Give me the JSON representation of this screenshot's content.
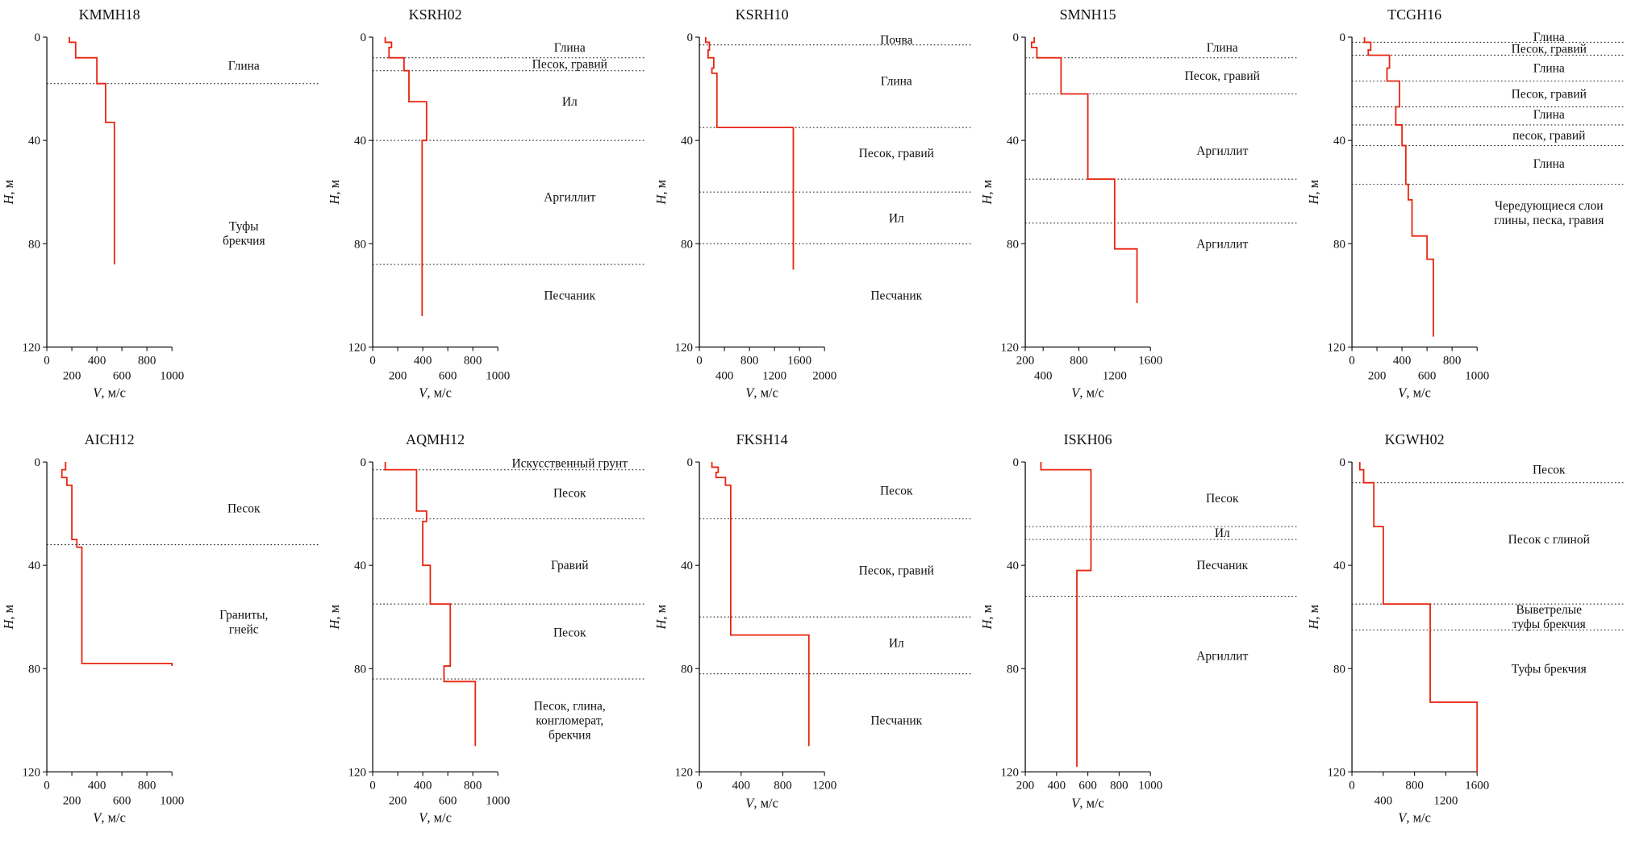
{
  "figure": {
    "description": "Seismic velocity (V) vs depth (H) profiles with geological layer annotations for ten boreholes",
    "colors": {
      "profile_line": "#e8250f",
      "boundary_line": "#222222",
      "text": "#111111",
      "axis": "#111111",
      "background": "#ffffff"
    }
  },
  "chart_data": [
    {
      "type": "line",
      "title": "KMMH18",
      "xlabel": "V, м/с",
      "ylabel": "H, м",
      "xlim": [
        0,
        1000
      ],
      "ylim": [
        0,
        120
      ],
      "xticks_row1": [
        0,
        400,
        800
      ],
      "xticks_row2": [
        200,
        600,
        1000
      ],
      "yticks": [
        0,
        40,
        80,
        120
      ],
      "boundaries_depth_m": [
        18
      ],
      "layers": [
        {
          "label": "Глина",
          "depth_m": 11
        },
        {
          "label": "Туфы\nбрекчия",
          "depth_m": 76
        }
      ],
      "profile_v_depth": [
        [
          180,
          0
        ],
        [
          180,
          2
        ],
        [
          230,
          2
        ],
        [
          230,
          8
        ],
        [
          400,
          8
        ],
        [
          400,
          18
        ],
        [
          470,
          18
        ],
        [
          470,
          33
        ],
        [
          540,
          33
        ],
        [
          540,
          88
        ]
      ]
    },
    {
      "type": "line",
      "title": "KSRH02",
      "xlabel": "V, м/с",
      "ylabel": "H, м",
      "xlim": [
        0,
        1000
      ],
      "ylim": [
        0,
        120
      ],
      "xticks_row1": [
        0,
        400,
        800
      ],
      "xticks_row2": [
        200,
        600,
        1000
      ],
      "yticks": [
        0,
        40,
        80,
        120
      ],
      "boundaries_depth_m": [
        8,
        13,
        40,
        88
      ],
      "layers": [
        {
          "label": "Глина",
          "depth_m": 4
        },
        {
          "label": "Песок, гравий",
          "depth_m": 10.5
        },
        {
          "label": "Ил",
          "depth_m": 25
        },
        {
          "label": "Аргиллит",
          "depth_m": 62
        },
        {
          "label": "Песчаник",
          "depth_m": 100
        }
      ],
      "profile_v_depth": [
        [
          100,
          0
        ],
        [
          100,
          2
        ],
        [
          150,
          2
        ],
        [
          150,
          4
        ],
        [
          130,
          4
        ],
        [
          130,
          8
        ],
        [
          250,
          8
        ],
        [
          250,
          13
        ],
        [
          290,
          13
        ],
        [
          290,
          25
        ],
        [
          430,
          25
        ],
        [
          430,
          40
        ],
        [
          395,
          40
        ],
        [
          395,
          108
        ]
      ]
    },
    {
      "type": "line",
      "title": "KSRH10",
      "xlabel": "V, м/с",
      "ylabel": "H, м",
      "xlim": [
        0,
        2000
      ],
      "ylim": [
        0,
        120
      ],
      "xticks_row1": [
        0,
        800,
        1600
      ],
      "xticks_row2": [
        400,
        1200,
        2000
      ],
      "yticks": [
        0,
        40,
        80,
        120
      ],
      "boundaries_depth_m": [
        3,
        35,
        60,
        80
      ],
      "layers": [
        {
          "label": "Почва",
          "depth_m": 1
        },
        {
          "label": "Глина",
          "depth_m": 17
        },
        {
          "label": "Песок, гравий",
          "depth_m": 45
        },
        {
          "label": "Ил",
          "depth_m": 70
        },
        {
          "label": "Песчаник",
          "depth_m": 100
        }
      ],
      "profile_v_depth": [
        [
          100,
          0
        ],
        [
          100,
          2
        ],
        [
          160,
          2
        ],
        [
          160,
          5
        ],
        [
          140,
          5
        ],
        [
          140,
          8
        ],
        [
          230,
          8
        ],
        [
          230,
          12
        ],
        [
          200,
          12
        ],
        [
          200,
          14
        ],
        [
          280,
          14
        ],
        [
          280,
          35
        ],
        [
          1500,
          35
        ],
        [
          1500,
          90
        ]
      ]
    },
    {
      "type": "line",
      "title": "SMNH15",
      "xlabel": "V, м/с",
      "ylabel": "H, м",
      "xlim": [
        200,
        1600
      ],
      "ylim": [
        0,
        120
      ],
      "xticks_row1": [
        200,
        800,
        1600
      ],
      "xticks_row2": [
        400,
        1200
      ],
      "yticks": [
        0,
        40,
        80,
        120
      ],
      "boundaries_depth_m": [
        8,
        22,
        55,
        72
      ],
      "layers": [
        {
          "label": "Глина",
          "depth_m": 4
        },
        {
          "label": "Песок, гравий",
          "depth_m": 15
        },
        {
          "label": "Аргиллит",
          "depth_m": 44
        },
        {
          "label": "Аргиллит",
          "depth_m": 80
        }
      ],
      "profile_v_depth": [
        [
          300,
          0
        ],
        [
          300,
          2
        ],
        [
          270,
          2
        ],
        [
          270,
          4
        ],
        [
          330,
          4
        ],
        [
          330,
          8
        ],
        [
          600,
          8
        ],
        [
          600,
          22
        ],
        [
          900,
          22
        ],
        [
          900,
          55
        ],
        [
          1200,
          55
        ],
        [
          1200,
          82
        ],
        [
          1450,
          82
        ],
        [
          1450,
          103
        ]
      ]
    },
    {
      "type": "line",
      "title": "TCGH16",
      "xlabel": "V, м/с",
      "ylabel": "H, м",
      "xlim": [
        0,
        1000
      ],
      "ylim": [
        0,
        120
      ],
      "xticks_row1": [
        0,
        400,
        800
      ],
      "xticks_row2": [
        200,
        600,
        1000
      ],
      "yticks": [
        0,
        40,
        80,
        120
      ],
      "boundaries_depth_m": [
        2,
        7,
        17,
        27,
        34,
        42,
        57
      ],
      "layers": [
        {
          "label": "Глина",
          "depth_m": 0
        },
        {
          "label": "Песок, гравий",
          "depth_m": 4.5
        },
        {
          "label": "Глина",
          "depth_m": 12
        },
        {
          "label": "Песок, гравий",
          "depth_m": 22
        },
        {
          "label": "Глина",
          "depth_m": 30
        },
        {
          "label": "песок, гравий",
          "depth_m": 38
        },
        {
          "label": "Глина",
          "depth_m": 49
        },
        {
          "label": "Чередующиеся слои\nглины, песка, гравия",
          "depth_m": 68
        }
      ],
      "profile_v_depth": [
        [
          100,
          0
        ],
        [
          100,
          2
        ],
        [
          150,
          2
        ],
        [
          150,
          5
        ],
        [
          130,
          5
        ],
        [
          130,
          7
        ],
        [
          300,
          7
        ],
        [
          300,
          12
        ],
        [
          280,
          12
        ],
        [
          280,
          17
        ],
        [
          380,
          17
        ],
        [
          380,
          27
        ],
        [
          350,
          27
        ],
        [
          350,
          34
        ],
        [
          400,
          34
        ],
        [
          400,
          42
        ],
        [
          430,
          42
        ],
        [
          430,
          57
        ],
        [
          450,
          57
        ],
        [
          450,
          63
        ],
        [
          480,
          63
        ],
        [
          480,
          77
        ],
        [
          600,
          77
        ],
        [
          600,
          86
        ],
        [
          650,
          86
        ],
        [
          650,
          116
        ]
      ]
    },
    {
      "type": "line",
      "title": "AICH12",
      "xlabel": "V, м/с",
      "ylabel": "H, м",
      "xlim": [
        0,
        1000
      ],
      "ylim": [
        0,
        120
      ],
      "xticks_row1": [
        0,
        400,
        800
      ],
      "xticks_row2": [
        200,
        600,
        1000
      ],
      "yticks": [
        0,
        40,
        80,
        120
      ],
      "boundaries_depth_m": [
        32
      ],
      "layers": [
        {
          "label": "Песок",
          "depth_m": 18
        },
        {
          "label": "Граниты,\nгнейс",
          "depth_m": 62
        }
      ],
      "profile_v_depth": [
        [
          150,
          0
        ],
        [
          150,
          3
        ],
        [
          120,
          3
        ],
        [
          120,
          6
        ],
        [
          160,
          6
        ],
        [
          160,
          9
        ],
        [
          200,
          9
        ],
        [
          200,
          30
        ],
        [
          240,
          30
        ],
        [
          240,
          33
        ],
        [
          280,
          33
        ],
        [
          280,
          78
        ],
        [
          1000,
          78
        ],
        [
          1000,
          79
        ]
      ]
    },
    {
      "type": "line",
      "title": "AQMH12",
      "xlabel": "V, м/с",
      "ylabel": "H, м",
      "xlim": [
        0,
        1000
      ],
      "ylim": [
        0,
        120
      ],
      "xticks_row1": [
        0,
        400,
        800
      ],
      "xticks_row2": [
        200,
        600,
        1000
      ],
      "yticks": [
        0,
        40,
        80,
        120
      ],
      "boundaries_depth_m": [
        3,
        22,
        55,
        84
      ],
      "layers": [
        {
          "label": "Искусственный грунт",
          "depth_m": 0.5
        },
        {
          "label": "Песок",
          "depth_m": 12
        },
        {
          "label": "Гравий",
          "depth_m": 40
        },
        {
          "label": "Песок",
          "depth_m": 66
        },
        {
          "label": "Песок, глина,\nконгломерат,\nбрекчия",
          "depth_m": 100
        }
      ],
      "profile_v_depth": [
        [
          100,
          0
        ],
        [
          100,
          3
        ],
        [
          350,
          3
        ],
        [
          350,
          19
        ],
        [
          430,
          19
        ],
        [
          430,
          23
        ],
        [
          400,
          23
        ],
        [
          400,
          40
        ],
        [
          460,
          40
        ],
        [
          460,
          55
        ],
        [
          620,
          55
        ],
        [
          620,
          79
        ],
        [
          570,
          79
        ],
        [
          570,
          85
        ],
        [
          820,
          85
        ],
        [
          820,
          110
        ]
      ]
    },
    {
      "type": "line",
      "title": "FKSH14",
      "xlabel": "V, м/с",
      "ylabel": "H, м",
      "xlim": [
        0,
        1200
      ],
      "ylim": [
        0,
        120
      ],
      "xticks_row1": [
        0,
        400,
        800,
        1200
      ],
      "xticks_row2": [],
      "yticks": [
        0,
        40,
        80,
        120
      ],
      "boundaries_depth_m": [
        22,
        60,
        82
      ],
      "layers": [
        {
          "label": "Песок",
          "depth_m": 11
        },
        {
          "label": "Песок, гравий",
          "depth_m": 42
        },
        {
          "label": "Ил",
          "depth_m": 70
        },
        {
          "label": "Песчаник",
          "depth_m": 100
        }
      ],
      "profile_v_depth": [
        [
          120,
          0
        ],
        [
          120,
          2
        ],
        [
          180,
          2
        ],
        [
          180,
          4
        ],
        [
          160,
          4
        ],
        [
          160,
          6
        ],
        [
          250,
          6
        ],
        [
          250,
          9
        ],
        [
          300,
          9
        ],
        [
          300,
          67
        ],
        [
          1050,
          67
        ],
        [
          1050,
          110
        ]
      ]
    },
    {
      "type": "line",
      "title": "ISKH06",
      "xlabel": "V, м/с",
      "ylabel": "H, м",
      "xlim": [
        200,
        1000
      ],
      "ylim": [
        0,
        120
      ],
      "xticks_row1": [
        200,
        400,
        600,
        800,
        1000
      ],
      "xticks_row2": [],
      "yticks": [
        0,
        40,
        80,
        120
      ],
      "boundaries_depth_m": [
        25,
        30,
        52
      ],
      "layers": [
        {
          "label": "Песок",
          "depth_m": 14
        },
        {
          "label": "Ил",
          "depth_m": 27.5
        },
        {
          "label": "Песчаник",
          "depth_m": 40
        },
        {
          "label": "Аргиллит",
          "depth_m": 75
        }
      ],
      "profile_v_depth": [
        [
          300,
          0
        ],
        [
          300,
          3
        ],
        [
          620,
          3
        ],
        [
          620,
          42
        ],
        [
          530,
          42
        ],
        [
          530,
          118
        ]
      ]
    },
    {
      "type": "line",
      "title": "KGWH02",
      "xlabel": "V, м/с",
      "ylabel": "H, м",
      "xlim": [
        0,
        1600
      ],
      "ylim": [
        0,
        120
      ],
      "xticks_row1": [
        0,
        800,
        1600
      ],
      "xticks_row2": [
        400,
        1200
      ],
      "yticks": [
        0,
        40,
        80,
        120
      ],
      "boundaries_depth_m": [
        8,
        55,
        65
      ],
      "layers": [
        {
          "label": "Песок",
          "depth_m": 3
        },
        {
          "label": "Песок с глиной",
          "depth_m": 30
        },
        {
          "label": "Выветрелые\nтуфы брекчия",
          "depth_m": 60
        },
        {
          "label": "Туфы брекчия",
          "depth_m": 80
        }
      ],
      "profile_v_depth": [
        [
          100,
          0
        ],
        [
          100,
          3
        ],
        [
          150,
          3
        ],
        [
          150,
          8
        ],
        [
          280,
          8
        ],
        [
          280,
          25
        ],
        [
          400,
          25
        ],
        [
          400,
          55
        ],
        [
          1000,
          55
        ],
        [
          1000,
          93
        ],
        [
          1600,
          93
        ],
        [
          1600,
          120
        ]
      ]
    }
  ]
}
